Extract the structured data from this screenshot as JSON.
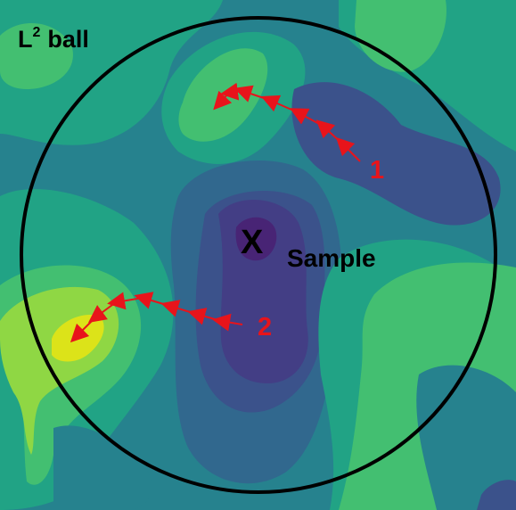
{
  "title": {
    "letter": "L",
    "exponent": "2",
    "word": "ball"
  },
  "sample": {
    "marker": "X",
    "label": "Sample"
  },
  "paths": [
    {
      "label": "1"
    },
    {
      "label": "2"
    }
  ],
  "colors": {
    "level0": "#482475",
    "level1": "#3b528b",
    "level2": "#31688e",
    "level3": "#26828e",
    "level4": "#21a385",
    "level5": "#43bf71",
    "level6": "#8fd744",
    "level7": "#dce319",
    "ball": "#000000",
    "arrow": "#e8141b"
  }
}
